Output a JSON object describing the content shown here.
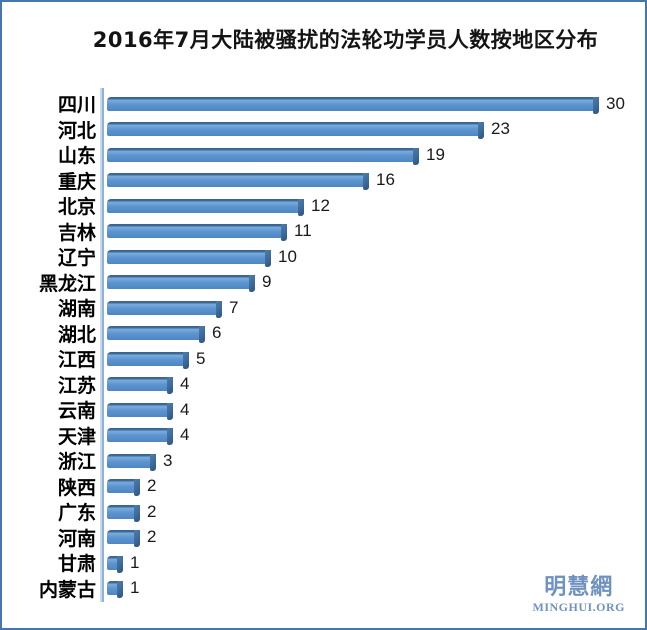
{
  "frame": {
    "border_color": "#4478ac",
    "background_color": "#ffffff"
  },
  "chart_data": {
    "type": "bar",
    "orientation": "horizontal",
    "title": "2016年7月大陆被骚扰的法轮功学员人数按地区分布",
    "categories": [
      "四川",
      "河北",
      "山东",
      "重庆",
      "北京",
      "吉林",
      "辽宁",
      "黑龙江",
      "湖南",
      "湖北",
      "江西",
      "江苏",
      "云南",
      "天津",
      "浙江",
      "陕西",
      "广东",
      "河南",
      "甘肃",
      "内蒙古"
    ],
    "values": [
      30,
      23,
      19,
      16,
      12,
      11,
      10,
      9,
      7,
      6,
      5,
      4,
      4,
      4,
      3,
      2,
      2,
      2,
      1,
      1
    ],
    "xlabel": "",
    "ylabel": "",
    "xlim": [
      0,
      30
    ],
    "grid": false,
    "legend": "none",
    "value_labels": "end-of-bar",
    "bar_color": "#5b94d0",
    "bar_cap_color": "#3f6d9e",
    "axis_color": "#8fb3d8",
    "label_color": "#000000",
    "value_color": "#1a1a1a",
    "title_color": "#141414"
  },
  "watermark": {
    "site_name_cn": "明慧網",
    "site_name_en": "MINGHUI.ORG",
    "color": "#7092c0"
  }
}
